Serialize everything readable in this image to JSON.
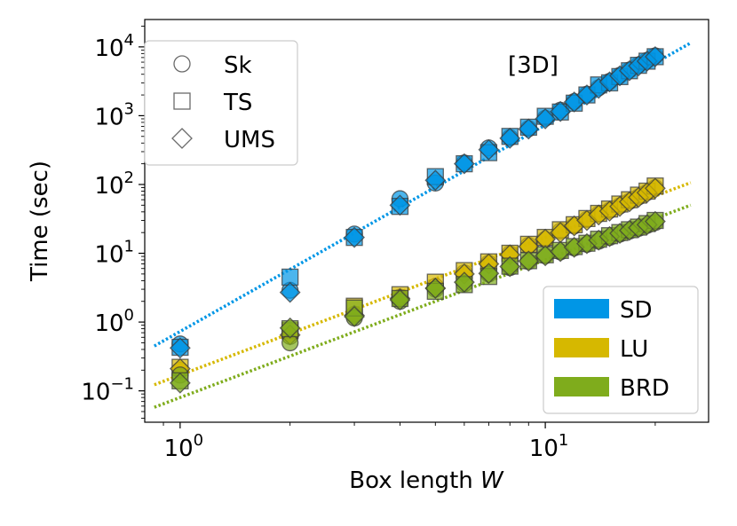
{
  "chart_data": {
    "type": "scatter",
    "xscale": "log",
    "yscale": "log",
    "xlabel_prefix": "Box length ",
    "xlabel_var": "W",
    "ylabel": "Time (sec)",
    "annotation": "[3D]",
    "xlim": [
      0.8,
      28
    ],
    "ylim": [
      0.035,
      25000
    ],
    "xticks": [
      {
        "value": 1,
        "base": "10",
        "exp": "0"
      },
      {
        "value": 10,
        "base": "10",
        "exp": "1"
      }
    ],
    "yticks": [
      {
        "value": 0.1,
        "base": "10",
        "exp": "−1"
      },
      {
        "value": 1,
        "base": "10",
        "exp": "0"
      },
      {
        "value": 10,
        "base": "10",
        "exp": "1"
      },
      {
        "value": 100,
        "base": "10",
        "exp": "2"
      },
      {
        "value": 1000,
        "base": "10",
        "exp": "3"
      },
      {
        "value": 10000,
        "base": "10",
        "exp": "4"
      }
    ],
    "marker_legend": [
      {
        "label": "Sk",
        "marker": "circle"
      },
      {
        "label": "TS",
        "marker": "square"
      },
      {
        "label": "UMS",
        "marker": "diamond"
      }
    ],
    "color_legend": [
      {
        "label": "SD",
        "color": "#0096e6"
      },
      {
        "label": "LU",
        "color": "#d6b800"
      },
      {
        "label": "BRD",
        "color": "#7fac1c"
      }
    ],
    "series": [
      {
        "name": "SD",
        "color": "#0096e6",
        "alpha": 0.7,
        "fit": {
          "prefactor": 0.73,
          "exponent": 3.0,
          "x_range": [
            0.85,
            25
          ]
        },
        "Sk": {
          "x": [
            1,
            2,
            3,
            4,
            5,
            6,
            7,
            8,
            9,
            10,
            11,
            12,
            13,
            14,
            15,
            16,
            17,
            18,
            19,
            20
          ],
          "y": [
            0.48,
            2.9,
            19,
            62,
            105,
            205,
            340,
            480,
            650,
            920,
            1200,
            1600,
            2050,
            2550,
            3150,
            3850,
            4600,
            5450,
            6350,
            7400
          ]
        },
        "TS": {
          "x": [
            1,
            2,
            3,
            4,
            5,
            6,
            7,
            8,
            9,
            10,
            11,
            12,
            13,
            14,
            15,
            16,
            17,
            18,
            19,
            20
          ],
          "y": [
            0.43,
            4.5,
            17,
            48,
            130,
            200,
            290,
            500,
            680,
            980,
            1130,
            1520,
            2000,
            2800,
            3000,
            3700,
            4500,
            5400,
            6200,
            7200
          ]
        },
        "UMS": {
          "x": [
            1,
            2,
            3,
            4,
            5,
            6,
            7,
            8,
            9,
            10,
            11,
            12,
            13,
            14,
            15,
            16,
            17,
            18,
            19,
            20
          ],
          "y": [
            0.42,
            2.7,
            17,
            50,
            115,
            200,
            320,
            470,
            640,
            900,
            1150,
            1580,
            2000,
            2500,
            3100,
            3800,
            4500,
            5300,
            6200,
            7200
          ]
        }
      },
      {
        "name": "LU",
        "color": "#d6b800",
        "alpha": 0.7,
        "fit": {
          "prefactor": 0.17,
          "exponent": 2.0,
          "x_range": [
            0.85,
            25
          ]
        },
        "Sk": {
          "x": [
            1,
            2,
            3,
            4,
            5,
            6,
            7,
            8,
            9,
            10,
            11,
            12,
            13,
            14,
            15,
            16,
            17,
            18,
            19,
            20
          ],
          "y": [
            0.2,
            0.62,
            1.3,
            2.3,
            3.3,
            5.2,
            7.2,
            9.8,
            13,
            16,
            21,
            25,
            31,
            37,
            42,
            49,
            57,
            66,
            77,
            90
          ]
        },
        "TS": {
          "x": [
            1,
            2,
            3,
            4,
            5,
            6,
            7,
            8,
            9,
            10,
            11,
            12,
            13,
            14,
            15,
            16,
            17,
            18,
            19,
            20
          ],
          "y": [
            0.22,
            0.75,
            1.7,
            2.5,
            3.8,
            5.6,
            7.5,
            10,
            13.5,
            17,
            22,
            26,
            32,
            38,
            44,
            52,
            60,
            70,
            80,
            95
          ]
        },
        "UMS": {
          "x": [
            1,
            2,
            3,
            4,
            5,
            6,
            7,
            8,
            9,
            10,
            11,
            12,
            13,
            14,
            15,
            16,
            17,
            18,
            19,
            20
          ],
          "y": [
            0.21,
            0.65,
            1.25,
            2.2,
            3.1,
            5.0,
            7.0,
            9.5,
            12.5,
            16,
            20,
            25,
            30,
            36,
            41,
            48,
            56,
            65,
            76,
            88
          ]
        }
      },
      {
        "name": "BRD",
        "color": "#7fac1c",
        "alpha": 0.7,
        "fit": {
          "prefactor": 0.08,
          "exponent": 2.0,
          "x_range": [
            0.85,
            25
          ]
        },
        "Sk": {
          "x": [
            1,
            2,
            3,
            4,
            5,
            6,
            7,
            8,
            9,
            10,
            11,
            12,
            13,
            14,
            15,
            16,
            17,
            18,
            19,
            20
          ],
          "y": [
            0.17,
            0.5,
            1.15,
            2.0,
            3.0,
            3.6,
            5.0,
            6.2,
            7.6,
            9.2,
            10.5,
            12,
            13.5,
            15,
            17,
            19,
            21,
            23,
            25.5,
            28
          ]
        },
        "TS": {
          "x": [
            1,
            2,
            3,
            4,
            5,
            6,
            7,
            8,
            9,
            10,
            11,
            12,
            13,
            14,
            15,
            16,
            17,
            18,
            19,
            20
          ],
          "y": [
            0.14,
            0.8,
            1.6,
            2.2,
            2.8,
            3.5,
            4.6,
            6.5,
            7.8,
            9.5,
            11,
            12.5,
            14,
            16,
            18,
            20,
            22,
            24,
            27,
            30
          ]
        },
        "UMS": {
          "x": [
            1,
            2,
            3,
            4,
            5,
            6,
            7,
            8,
            9,
            10,
            11,
            12,
            13,
            14,
            15,
            16,
            17,
            18,
            19,
            20
          ],
          "y": [
            0.13,
            0.82,
            1.2,
            2.1,
            3.1,
            3.8,
            5.1,
            6.4,
            7.7,
            9.2,
            10.6,
            12.2,
            13.8,
            15.5,
            17.5,
            19.5,
            21.5,
            23.5,
            26,
            29
          ]
        }
      }
    ]
  }
}
